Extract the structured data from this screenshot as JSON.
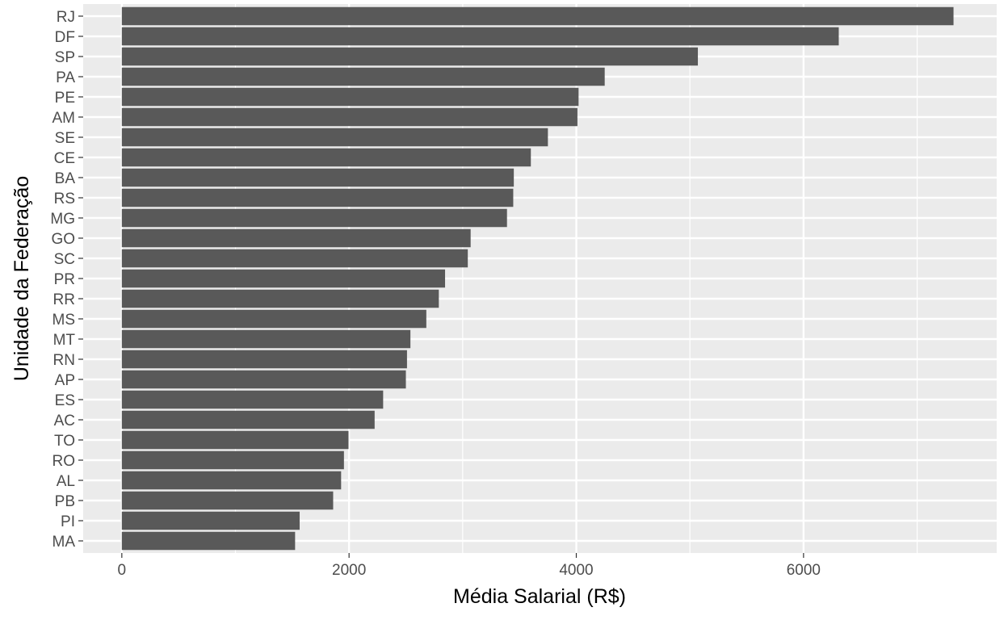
{
  "chart_data": {
    "type": "bar",
    "orientation": "horizontal",
    "title": "",
    "xlabel": "Média Salarial (R$)",
    "ylabel": "Unidade da Federação",
    "xlim": [
      -340,
      7700
    ],
    "xticks": [
      0,
      2000,
      4000,
      6000
    ],
    "x_minor_gridlines": [
      1000,
      3000,
      5000,
      7000
    ],
    "grid": true,
    "legend": "none",
    "categories": [
      "RJ",
      "DF",
      "SP",
      "PA",
      "PE",
      "AM",
      "SE",
      "CE",
      "BA",
      "RS",
      "MG",
      "GO",
      "SC",
      "PR",
      "RR",
      "MS",
      "MT",
      "RN",
      "AP",
      "ES",
      "AC",
      "TO",
      "RO",
      "AL",
      "PB",
      "PI",
      "MA"
    ],
    "values": [
      7320,
      6310,
      5070,
      4250,
      4020,
      4010,
      3750,
      3600,
      3450,
      3445,
      3390,
      3070,
      3045,
      2845,
      2790,
      2680,
      2540,
      2510,
      2500,
      2300,
      2225,
      1995,
      1955,
      1930,
      1860,
      1565,
      1525
    ],
    "colors": {
      "panel_background": "#ebebeb",
      "gridline": "#ffffff",
      "bar": "#595959",
      "tick_text": "#4d4d4d",
      "tick_mark": "#333333",
      "title_text": "#000000"
    }
  }
}
